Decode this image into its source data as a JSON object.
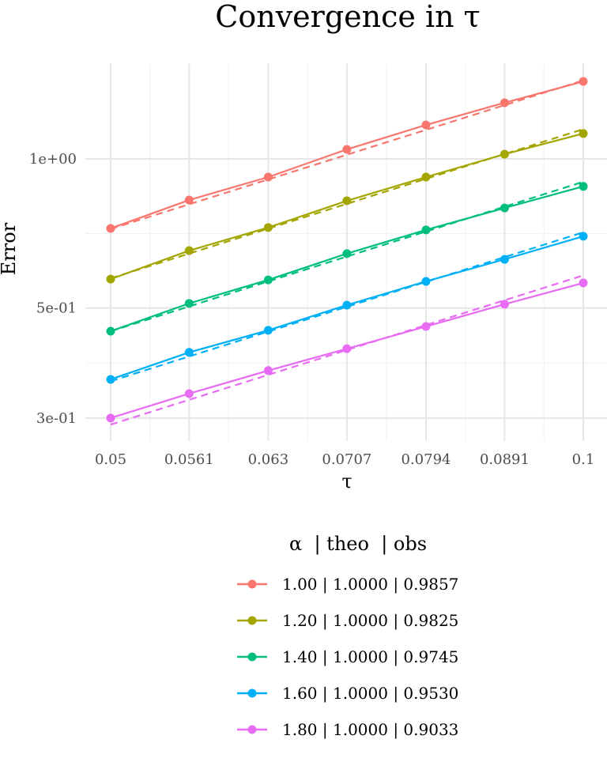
{
  "chart_data": {
    "type": "line",
    "title": "Convergence in τ",
    "xlabel": "τ",
    "ylabel": "Error",
    "x_scale": "log",
    "y_scale": "log",
    "xlim": [
      0.05,
      0.1
    ],
    "ylim": [
      0.28,
      1.5
    ],
    "grid": true,
    "x_ticks": [
      0.05,
      0.0561,
      0.063,
      0.0707,
      0.0794,
      0.0891,
      0.1
    ],
    "x_tick_labels": [
      "0.05",
      "0.0561",
      "0.063",
      "0.0707",
      "0.0794",
      "0.0891",
      "0.1"
    ],
    "y_ticks": [
      0.3,
      0.5,
      1.0
    ],
    "y_tick_labels": [
      "3e-01",
      "5e-01",
      "1e+00"
    ],
    "x": [
      0.05,
      0.0561,
      0.063,
      0.0707,
      0.0794,
      0.0891,
      0.1
    ],
    "legend": {
      "title": "α  | theo  | obs",
      "placement": "bottom"
    },
    "series": [
      {
        "name": "1.00 | 1.0000 | 0.9857",
        "color": "#F8766D",
        "values": [
          0.724,
          0.826,
          0.919,
          1.045,
          1.171,
          1.298,
          1.433
        ],
        "theo_line": [
          0.722,
          1.44
        ]
      },
      {
        "name": "1.20 | 1.0000 | 0.9825",
        "color": "#A3A500",
        "values": [
          0.572,
          0.653,
          0.727,
          0.823,
          0.919,
          1.022,
          1.125
        ],
        "theo_line": [
          0.574,
          1.148
        ]
      },
      {
        "name": "1.40 | 1.0000 | 0.9745",
        "color": "#00BF7D",
        "values": [
          0.449,
          0.511,
          0.57,
          0.644,
          0.719,
          0.796,
          0.88
        ],
        "theo_line": [
          0.449,
          0.899
        ]
      },
      {
        "name": "1.60 | 1.0000 | 0.9530",
        "color": "#00B0F6",
        "values": [
          0.359,
          0.407,
          0.451,
          0.507,
          0.566,
          0.627,
          0.698
        ],
        "theo_line": [
          0.356,
          0.711
        ]
      },
      {
        "name": "1.80 | 1.0000 | 0.9033",
        "color": "#E76BF3",
        "values": [
          0.3,
          0.336,
          0.374,
          0.414,
          0.459,
          0.509,
          0.562
        ],
        "theo_line": [
          0.291,
          0.582
        ]
      }
    ]
  }
}
